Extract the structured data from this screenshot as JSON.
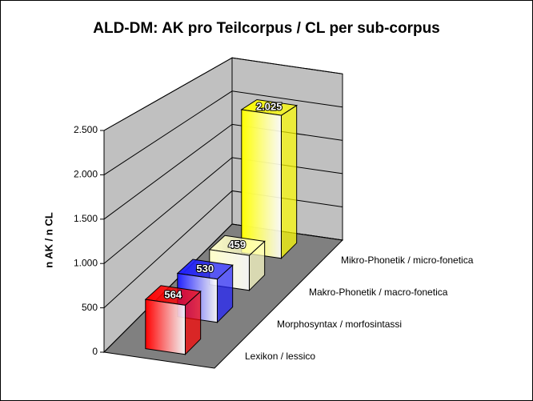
{
  "chart_data": {
    "type": "bar3d",
    "title": "ALD-DM: AK pro Teilcorpus / CL per sub-corpus",
    "y_label": "n AK / n CL",
    "categories": [
      "Lexikon / lessico",
      "Morphosyntax / morfosintassi",
      "Makro-Phonetik / macro-fonetica",
      "Mikro-Phonetik / micro-fonetica"
    ],
    "values": [
      564,
      530,
      459,
      2025
    ],
    "value_labels": [
      "564",
      "530",
      "459",
      "2.025"
    ],
    "colors": [
      "#ff0000",
      "#2020ff",
      "#ffffc8",
      "#ffff00"
    ],
    "ylim": [
      0,
      2500
    ],
    "yticks": [
      0,
      500,
      {
        "value": 1000,
        "label": "1.000"
      },
      {
        "value": 1500,
        "label": "1.500"
      },
      {
        "value": 2000,
        "label": "2.000"
      },
      {
        "value": 2500,
        "label": "2.500"
      }
    ],
    "grid": true
  }
}
